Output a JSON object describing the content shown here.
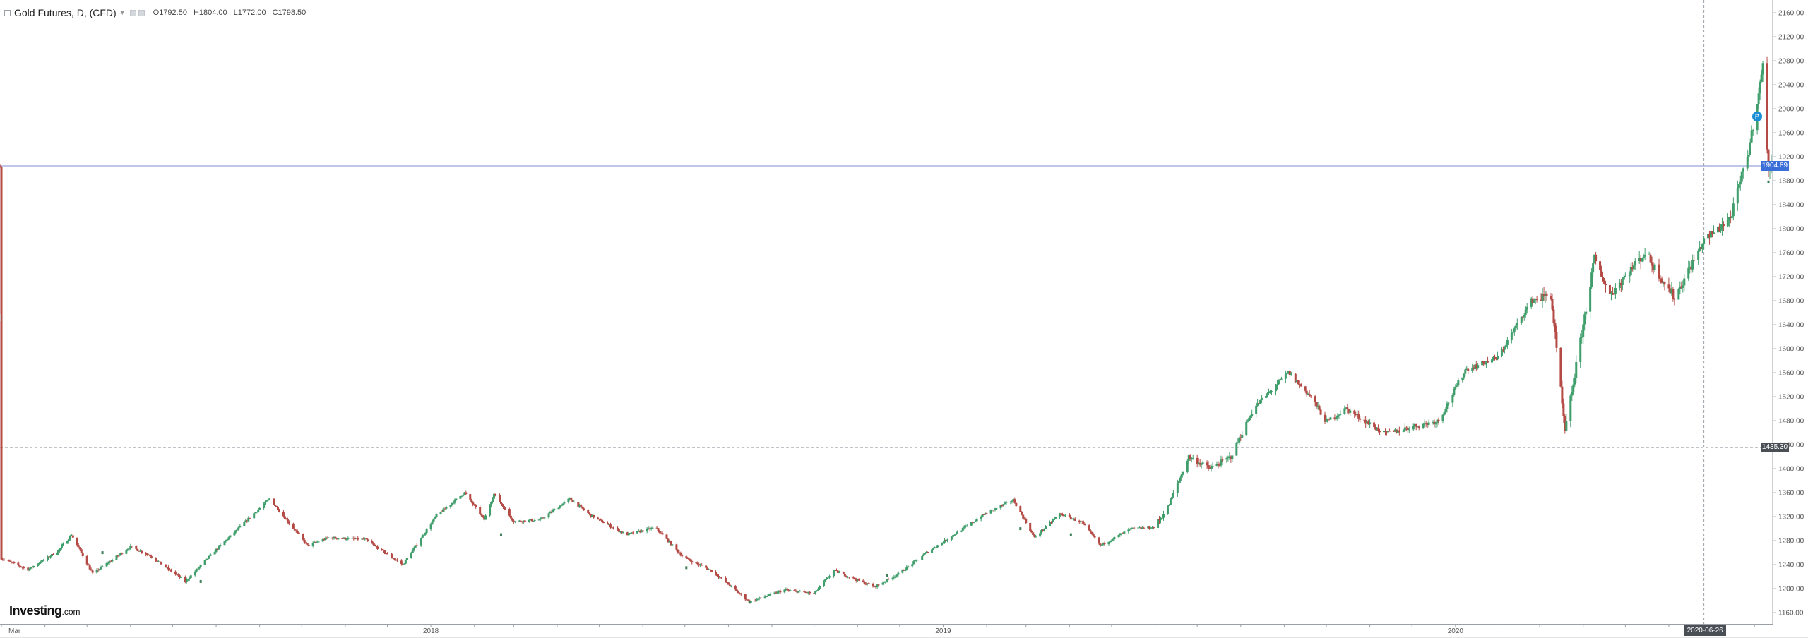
{
  "legend": {
    "symbol": "Gold Futures, D, (CFD)",
    "open_label": "O",
    "open": "1792.50",
    "high_label": "H",
    "high": "1804.00",
    "low_label": "L",
    "low": "1772.00",
    "close_label": "C",
    "close": "1798.50"
  },
  "price_tags": {
    "current": "1904.89",
    "crosshair": "1435.30"
  },
  "crosshair_date": "2020-06-26",
  "event_marker": "P",
  "logo": {
    "main": "Investing",
    "suffix": ".com"
  },
  "colors": {
    "up": "#3f9e6b",
    "down": "#b54a45",
    "current_line": "#7c8fd6",
    "crosshair": "#9aa0a6"
  },
  "chart_data": {
    "type": "candlestick",
    "instrument": "Gold Futures, D, (CFD)",
    "interval": "D",
    "y_axis": {
      "position": "right",
      "ylim": [
        1141.3,
        2181.3
      ],
      "ticks": [
        "2160.00",
        "2120.00",
        "2080.00",
        "2040.00",
        "2000.00",
        "1960.00",
        "1920.00",
        "1880.00",
        "1840.00",
        "1800.00",
        "1760.00",
        "1720.00",
        "1680.00",
        "1640.00",
        "1600.00",
        "1560.00",
        "1520.00",
        "1480.00",
        "1440.00",
        "1400.00",
        "1360.00",
        "1320.00",
        "1280.00",
        "1240.00",
        "1200.00",
        "1160.00"
      ]
    },
    "x_axis": {
      "labels": [
        {
          "text": "Mar",
          "date": "2017-03-01"
        },
        {
          "text": "2018",
          "date": "2018-01-01"
        },
        {
          "text": "2019",
          "date": "2019-01-01"
        },
        {
          "text": "2020",
          "date": "2020-01-01"
        }
      ],
      "xlim": [
        "2017-02-28",
        "2020-08-13"
      ]
    },
    "current_price": 1904.89,
    "crosshair": {
      "date": "2020-06-26",
      "price": 1435.3
    },
    "grid": false,
    "price_path": [
      [
        "2017-03-01",
        1250
      ],
      [
        "2017-03-20",
        1232
      ],
      [
        "2017-04-10",
        1262
      ],
      [
        "2017-04-20",
        1290
      ],
      [
        "2017-05-05",
        1225
      ],
      [
        "2017-06-01",
        1270
      ],
      [
        "2017-06-15",
        1255
      ],
      [
        "2017-07-10",
        1212
      ],
      [
        "2017-08-01",
        1265
      ],
      [
        "2017-09-08",
        1350
      ],
      [
        "2017-10-05",
        1272
      ],
      [
        "2017-10-20",
        1285
      ],
      [
        "2017-11-15",
        1282
      ],
      [
        "2017-12-12",
        1240
      ],
      [
        "2018-01-05",
        1322
      ],
      [
        "2018-01-25",
        1360
      ],
      [
        "2018-02-08",
        1315
      ],
      [
        "2018-02-15",
        1358
      ],
      [
        "2018-03-01",
        1312
      ],
      [
        "2018-03-20",
        1315
      ],
      [
        "2018-04-10",
        1350
      ],
      [
        "2018-04-25",
        1322
      ],
      [
        "2018-05-20",
        1290
      ],
      [
        "2018-06-10",
        1302
      ],
      [
        "2018-06-30",
        1252
      ],
      [
        "2018-07-20",
        1230
      ],
      [
        "2018-08-16",
        1178
      ],
      [
        "2018-09-10",
        1198
      ],
      [
        "2018-10-01",
        1192
      ],
      [
        "2018-10-15",
        1230
      ],
      [
        "2018-11-13",
        1203
      ],
      [
        "2018-12-01",
        1226
      ],
      [
        "2018-12-20",
        1260
      ],
      [
        "2019-01-10",
        1292
      ],
      [
        "2019-01-31",
        1325
      ],
      [
        "2019-02-20",
        1348
      ],
      [
        "2019-03-07",
        1285
      ],
      [
        "2019-03-25",
        1325
      ],
      [
        "2019-04-10",
        1310
      ],
      [
        "2019-04-23",
        1272
      ],
      [
        "2019-05-15",
        1300
      ],
      [
        "2019-05-31",
        1302
      ],
      [
        "2019-06-10",
        1335
      ],
      [
        "2019-06-25",
        1420
      ],
      [
        "2019-07-10",
        1400
      ],
      [
        "2019-07-25",
        1420
      ],
      [
        "2019-08-10",
        1500
      ],
      [
        "2019-09-04",
        1560
      ],
      [
        "2019-09-20",
        1520
      ],
      [
        "2019-10-01",
        1478
      ],
      [
        "2019-10-15",
        1500
      ],
      [
        "2019-11-12",
        1458
      ],
      [
        "2019-12-01",
        1470
      ],
      [
        "2019-12-20",
        1480
      ],
      [
        "2020-01-08",
        1565
      ],
      [
        "2020-01-31",
        1585
      ],
      [
        "2020-02-24",
        1680
      ],
      [
        "2020-03-09",
        1690
      ],
      [
        "2020-03-19",
        1460
      ],
      [
        "2020-04-09",
        1750
      ],
      [
        "2020-04-20",
        1690
      ],
      [
        "2020-05-15",
        1760
      ],
      [
        "2020-06-05",
        1685
      ],
      [
        "2020-06-26",
        1780
      ],
      [
        "2020-07-15",
        1818
      ],
      [
        "2020-07-28",
        1930
      ],
      [
        "2020-08-07",
        2070
      ],
      [
        "2020-08-11",
        1895
      ],
      [
        "2020-08-13",
        1905
      ]
    ]
  }
}
